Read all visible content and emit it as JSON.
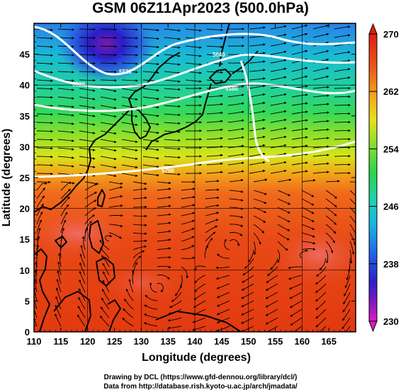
{
  "title": "GSM 06Z11Apr2023 (500.0hPa)",
  "map": {
    "lon_range": [
      110,
      170
    ],
    "lat_range": [
      0,
      50
    ],
    "lon_ticks": [
      110,
      115,
      120,
      125,
      130,
      135,
      140,
      145,
      150,
      155,
      160,
      165
    ],
    "lat_ticks": [
      0,
      5,
      10,
      15,
      20,
      25,
      30,
      35,
      40,
      45
    ],
    "xlabel": "Longitude (degrees)",
    "ylabel": "Latitude (degrees)",
    "grid": true,
    "field": "temperature (K) shading with wind streamlines and white height contours",
    "colors": {
      "cold_core": "#2a1dc8",
      "warm": "#e43a10",
      "contour": "#ffffff",
      "coast": "#000000"
    }
  },
  "colorbar": {
    "min": 230,
    "max": 270,
    "labels": [
      "270",
      "262",
      "254",
      "246",
      "238",
      "230"
    ],
    "label_values": [
      270,
      262,
      254,
      246,
      238,
      230
    ]
  },
  "contours": {
    "labels": [
      "5520",
      "5640",
      "5580",
      "5700"
    ]
  },
  "credits": {
    "line1": "Drawing by DCL (https://www.gfd-dennou.org/library/dcl/)",
    "line2": "Data from http://database.rish.kyoto-u.ac.jp/arch/jmadata/"
  }
}
